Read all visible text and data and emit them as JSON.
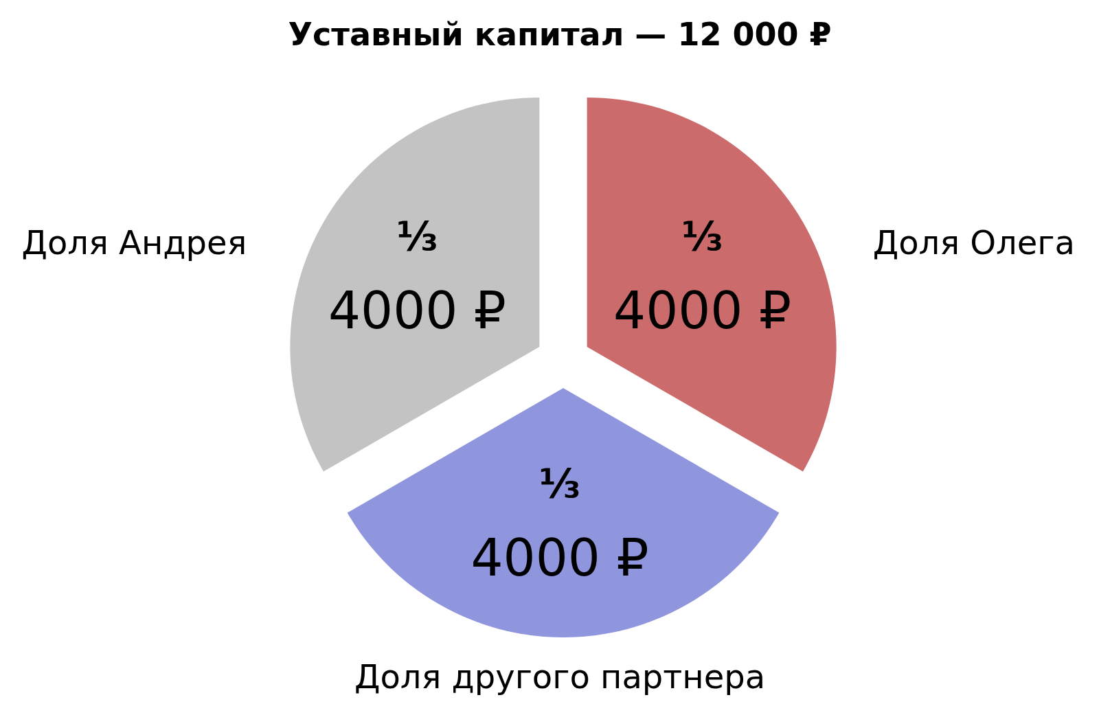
{
  "chart_data": {
    "type": "pie",
    "title": "Уставный капитал — 12 000 ₽",
    "categories": [
      "Доля Олега",
      "Доля другого партнера",
      "Доля Андрея"
    ],
    "values": [
      4000,
      4000,
      4000
    ],
    "colors": [
      "#cc6b6c",
      "#8f96dd",
      "#c3c3c3"
    ],
    "value_labels": [
      "4000 ₽",
      "4000 ₽",
      "4000 ₽"
    ],
    "annotations": [
      "⅓",
      "⅓",
      "⅓"
    ]
  }
}
